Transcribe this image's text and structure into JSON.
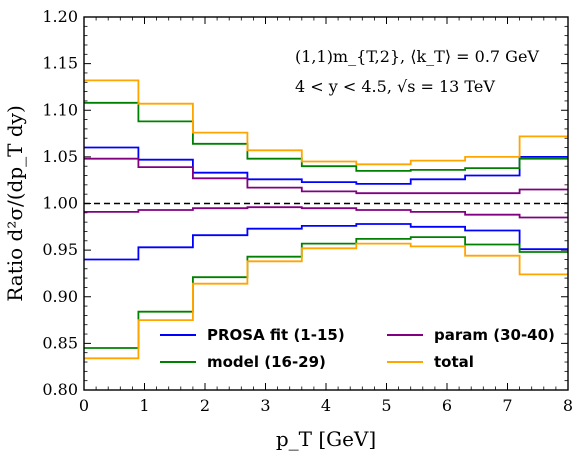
{
  "chart_data": {
    "type": "line",
    "step": true,
    "xlabel": "p_T [GeV]",
    "ylabel": "Ratio d²σ/(dp_T dy)",
    "xlim": [
      0,
      8
    ],
    "ylim": [
      0.8,
      1.2
    ],
    "x_ticks": [
      "0",
      "1",
      "2",
      "3",
      "4",
      "5",
      "6",
      "7",
      "8"
    ],
    "y_ticks": [
      "0.80",
      "0.85",
      "0.90",
      "0.95",
      "1.00",
      "1.05",
      "1.10",
      "1.15",
      "1.20"
    ],
    "annotations": [
      "(1,1)m_{T,2},  ⟨k_T⟩ = 0.7 GeV",
      "4 < y < 4.5,  √s = 13 TeV"
    ],
    "reference_line": 1.0,
    "bin_edges": [
      0,
      0.9,
      1.8,
      2.7,
      3.6,
      4.5,
      5.4,
      6.3,
      7.2,
      8.0
    ],
    "legend": {
      "position": "lower-center",
      "entries": [
        "PROSA fit (1-15)",
        "model (16-29)",
        "param (30-40)",
        "total"
      ]
    },
    "series": [
      {
        "name": "PROSA fit (1-15)",
        "color": "#0000ff",
        "band": "upper",
        "values": [
          1.06,
          1.047,
          1.033,
          1.026,
          1.023,
          1.021,
          1.026,
          1.03,
          1.05
        ]
      },
      {
        "name": "PROSA fit (1-15)",
        "color": "#0000ff",
        "band": "lower",
        "values": [
          0.94,
          0.953,
          0.966,
          0.973,
          0.976,
          0.978,
          0.975,
          0.971,
          0.951
        ]
      },
      {
        "name": "model (16-29)",
        "color": "#008000",
        "band": "upper",
        "values": [
          1.108,
          1.088,
          1.064,
          1.048,
          1.04,
          1.035,
          1.036,
          1.038,
          1.048
        ]
      },
      {
        "name": "model (16-29)",
        "color": "#008000",
        "band": "lower",
        "values": [
          0.845,
          0.884,
          0.921,
          0.943,
          0.957,
          0.962,
          0.964,
          0.956,
          0.948
        ]
      },
      {
        "name": "param (30-40)",
        "color": "#800080",
        "band": "upper",
        "values": [
          1.048,
          1.039,
          1.027,
          1.017,
          1.013,
          1.011,
          1.011,
          1.011,
          1.015
        ]
      },
      {
        "name": "param (30-40)",
        "color": "#800080",
        "band": "lower",
        "values": [
          0.991,
          0.993,
          0.995,
          0.996,
          0.995,
          0.993,
          0.991,
          0.988,
          0.985
        ]
      },
      {
        "name": "total",
        "color": "#ffa500",
        "band": "upper",
        "values": [
          1.132,
          1.107,
          1.076,
          1.057,
          1.045,
          1.042,
          1.046,
          1.05,
          1.072
        ]
      },
      {
        "name": "total",
        "color": "#ffa500",
        "band": "lower",
        "values": [
          0.834,
          0.875,
          0.914,
          0.938,
          0.952,
          0.957,
          0.954,
          0.944,
          0.924
        ]
      }
    ]
  }
}
